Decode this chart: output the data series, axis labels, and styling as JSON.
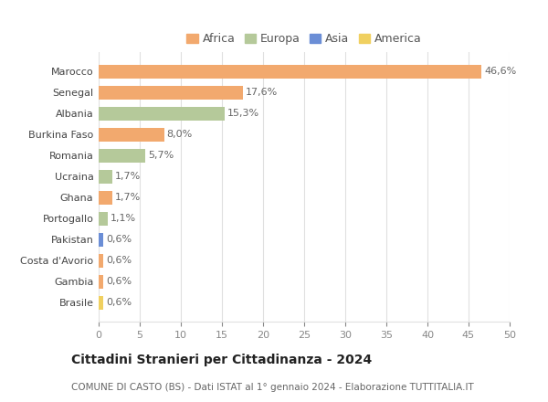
{
  "countries": [
    "Marocco",
    "Senegal",
    "Albania",
    "Burkina Faso",
    "Romania",
    "Ucraina",
    "Ghana",
    "Portogallo",
    "Pakistan",
    "Costa d'Avorio",
    "Gambia",
    "Brasile"
  ],
  "values": [
    46.6,
    17.6,
    15.3,
    8.0,
    5.7,
    1.7,
    1.7,
    1.1,
    0.6,
    0.6,
    0.6,
    0.6
  ],
  "labels": [
    "46,6%",
    "17,6%",
    "15,3%",
    "8,0%",
    "5,7%",
    "1,7%",
    "1,7%",
    "1,1%",
    "0,6%",
    "0,6%",
    "0,6%",
    "0,6%"
  ],
  "bar_colors": [
    "#F2A96E",
    "#F2A96E",
    "#B5C99A",
    "#F2A96E",
    "#B5C99A",
    "#B5C99A",
    "#F2A96E",
    "#B5C99A",
    "#6B8ED6",
    "#F2A96E",
    "#F2A96E",
    "#F0D060"
  ],
  "legend_items": [
    {
      "label": "Africa",
      "color": "#F2A96E"
    },
    {
      "label": "Europa",
      "color": "#B5C99A"
    },
    {
      "label": "Asia",
      "color": "#6B8ED6"
    },
    {
      "label": "America",
      "color": "#F0D060"
    }
  ],
  "xlim": [
    0,
    50
  ],
  "xticks": [
    0,
    5,
    10,
    15,
    20,
    25,
    30,
    35,
    40,
    45,
    50
  ],
  "title": "Cittadini Stranieri per Cittadinanza - 2024",
  "subtitle": "COMUNE DI CASTO (BS) - Dati ISTAT al 1° gennaio 2024 - Elaborazione TUTTITALIA.IT",
  "background_color": "#ffffff",
  "grid_color": "#e0e0e0",
  "label_color": "#666666",
  "ytick_fontsize": 8,
  "xtick_fontsize": 8,
  "bar_label_fontsize": 8,
  "title_fontsize": 10,
  "subtitle_fontsize": 7.5,
  "legend_fontsize": 9,
  "bar_height": 0.65
}
